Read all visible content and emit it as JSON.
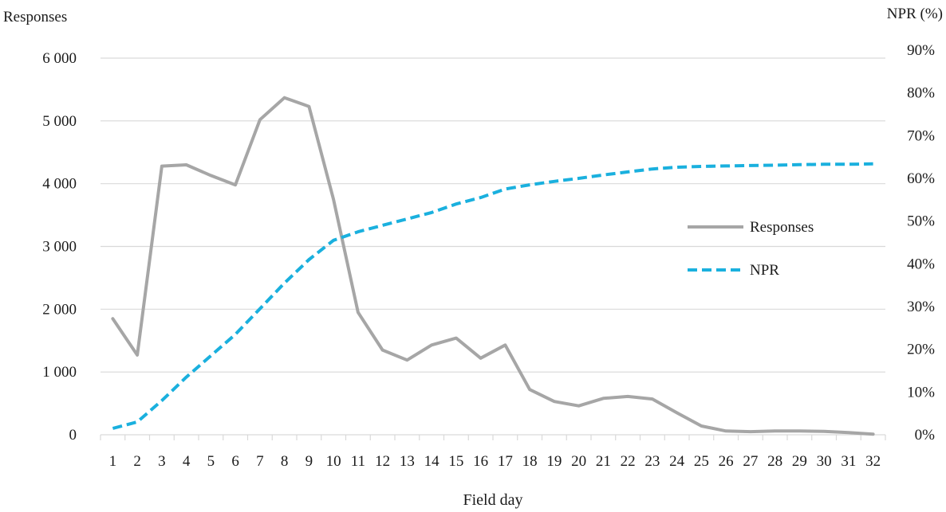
{
  "chart_data": {
    "type": "line",
    "xlabel": "Field day",
    "ylabel_left": "Responses",
    "ylabel_right": "NPR (%)",
    "x": [
      1,
      2,
      3,
      4,
      5,
      6,
      7,
      8,
      9,
      10,
      11,
      12,
      13,
      14,
      15,
      16,
      17,
      18,
      19,
      20,
      21,
      22,
      23,
      24,
      25,
      26,
      27,
      28,
      29,
      30,
      31,
      32
    ],
    "x_tick_labels": [
      "1",
      "2",
      "3",
      "4",
      "5",
      "6",
      "7",
      "8",
      "9",
      "10",
      "11",
      "12",
      "13",
      "14",
      "15",
      "16",
      "17",
      "18",
      "19",
      "20",
      "21",
      "22",
      "23",
      "24",
      "25",
      "26",
      "27",
      "28",
      "29",
      "30",
      "31",
      "32"
    ],
    "ylim_left": [
      0,
      6000
    ],
    "yticks_left": [
      0,
      1000,
      2000,
      3000,
      4000,
      5000,
      6000
    ],
    "ytick_labels_left": [
      "0",
      "1 000",
      "2 000",
      "3 000",
      "4 000",
      "5 000",
      "6 000"
    ],
    "ylim_right": [
      0,
      90
    ],
    "yticks_right": [
      0,
      10,
      20,
      30,
      40,
      50,
      60,
      70,
      80,
      90
    ],
    "ytick_labels_right": [
      "0%",
      "10%",
      "20%",
      "30%",
      "40%",
      "50%",
      "60%",
      "70%",
      "80%",
      "90%"
    ],
    "grid": true,
    "legend_position": "right",
    "series": [
      {
        "name": "Responses",
        "axis": "left",
        "style": "solid",
        "color": "#a6a6a6",
        "values": [
          1850,
          1270,
          4280,
          4300,
          4130,
          3980,
          5020,
          5370,
          5230,
          3750,
          1950,
          1350,
          1190,
          1430,
          1540,
          1220,
          1430,
          720,
          530,
          460,
          580,
          610,
          570,
          350,
          140,
          60,
          50,
          60,
          60,
          55,
          35,
          10
        ]
      },
      {
        "name": "NPR",
        "axis": "right",
        "style": "dashed",
        "color": "#1ab0de",
        "values": [
          1.5,
          3.0,
          8.0,
          13.5,
          18.5,
          23.5,
          29.5,
          35.5,
          41.0,
          45.5,
          47.5,
          49.0,
          50.5,
          52.0,
          54.0,
          55.5,
          57.5,
          58.5,
          59.3,
          60.0,
          60.8,
          61.5,
          62.2,
          62.6,
          62.8,
          62.9,
          63.0,
          63.1,
          63.2,
          63.3,
          63.3,
          63.4
        ]
      }
    ]
  }
}
